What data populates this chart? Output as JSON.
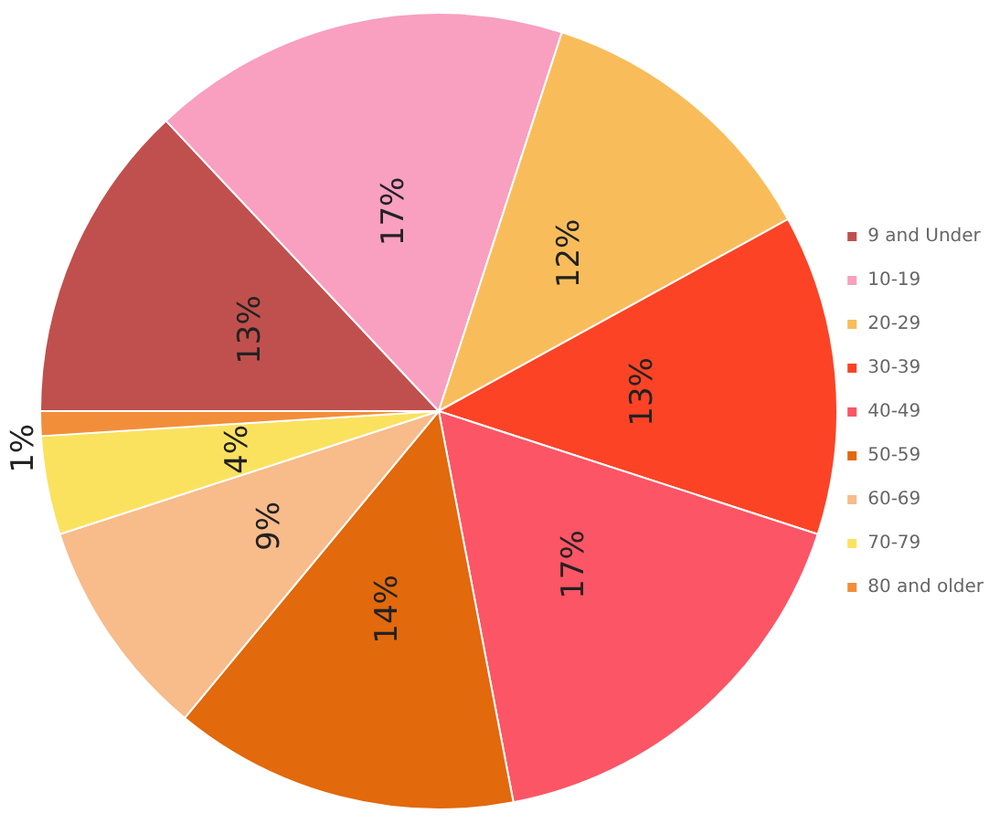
{
  "chart_data": {
    "type": "pie",
    "categories": [
      "9 and Under",
      "10-19",
      "20-29",
      "30-39",
      "40-49",
      "50-59",
      "60-69",
      "70-79",
      "80 and older"
    ],
    "values": [
      13,
      17,
      12,
      13,
      17,
      14,
      9,
      4,
      1
    ],
    "value_labels": [
      "13%",
      "17%",
      "12%",
      "13%",
      "17%",
      "14%",
      "9%",
      "4%",
      "1%"
    ],
    "colors": [
      "#c0504d",
      "#f99fc0",
      "#f8bd5a",
      "#fc4325",
      "#fc5565",
      "#e2690c",
      "#f8bb8a",
      "#fbe25e",
      "#f28e3a"
    ],
    "legend": "right"
  }
}
